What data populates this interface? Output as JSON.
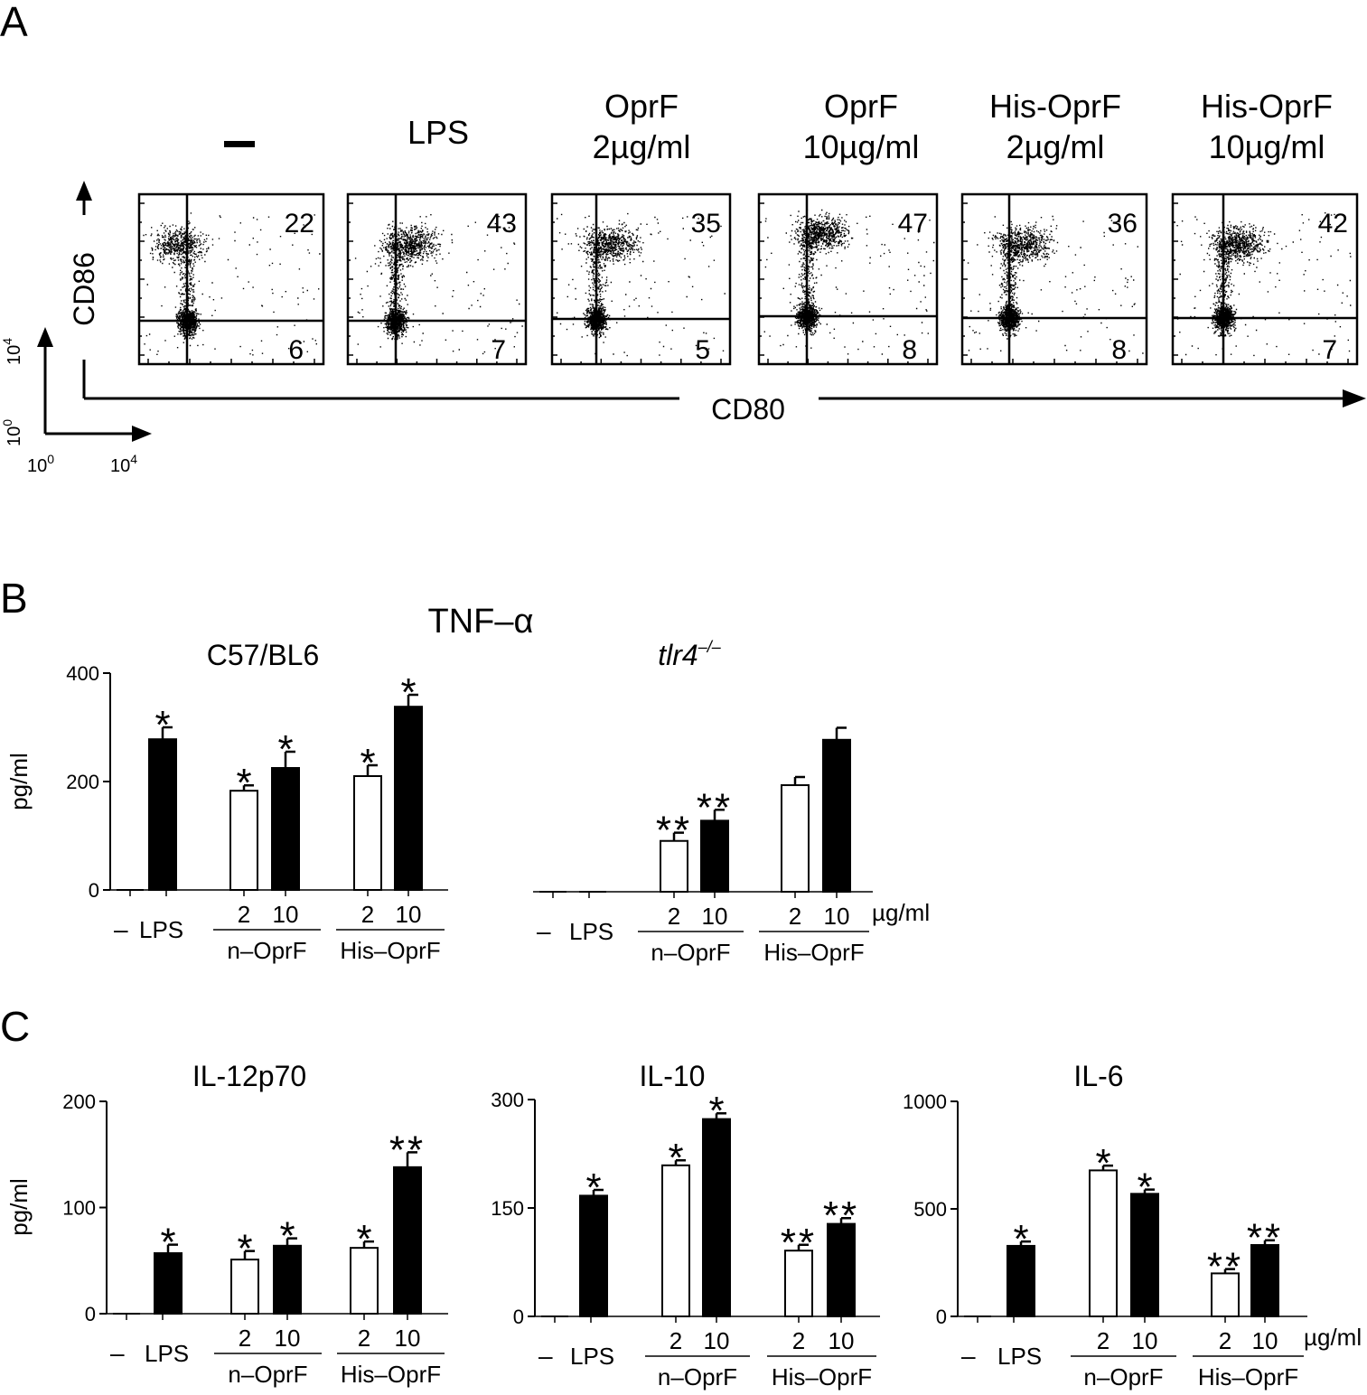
{
  "panels": {
    "a": "A",
    "b": "B",
    "c": "C"
  },
  "flow": {
    "conditions": [
      {
        "line1": "–",
        "line2": ""
      },
      {
        "line1": "LPS",
        "line2": ""
      },
      {
        "line1": "OprF",
        "line2": "2µg/ml"
      },
      {
        "line1": "OprF",
        "line2": "10µg/ml"
      },
      {
        "line1": "His-OprF",
        "line2": "2µg/ml"
      },
      {
        "line1": "His-OprF",
        "line2": "10µg/ml"
      }
    ],
    "upper_right_pct": [
      "22",
      "43",
      "35",
      "47",
      "36",
      "42"
    ],
    "lower_right_pct": [
      "6",
      "7",
      "5",
      "8",
      "8",
      "7"
    ],
    "y_axis_label": "CD86",
    "x_axis_label": "CD80",
    "scale_ticks": {
      "y_low": "10",
      "y_low_exp": "0",
      "y_high": "10",
      "y_high_exp": "4",
      "x_low": "10",
      "x_low_exp": "0",
      "x_high": "10",
      "x_high_exp": "4"
    }
  },
  "x_groups": {
    "minus": "–",
    "lps": "LPS",
    "dose_low": "2",
    "dose_high": "10",
    "n_oprf": "n–OprF",
    "his_oprf": "His–OprF",
    "unit": "µg/ml"
  },
  "tnf_title": "TNF–α",
  "chart_data": [
    {
      "type": "bar",
      "panel": "B",
      "title": "C57/BL6",
      "ylabel": "pg/ml",
      "ylim": [
        0,
        400
      ],
      "yticks": [
        0,
        200,
        400
      ],
      "categories": [
        "–",
        "LPS",
        "n–OprF 2",
        "n–OprF 10",
        "His–OprF 2",
        "His–OprF 10"
      ],
      "values": [
        0,
        278,
        183,
        225,
        210,
        338
      ],
      "errors": [
        0,
        22,
        10,
        30,
        20,
        22
      ],
      "fill": [
        "black",
        "black",
        "white",
        "black",
        "white",
        "black"
      ],
      "significance": [
        "",
        "*",
        "*",
        "*",
        "*",
        "*"
      ]
    },
    {
      "type": "bar",
      "panel": "B",
      "title": "tlr4",
      "title_superscript": "–/–",
      "ylabel": "",
      "ylim": [
        0,
        400
      ],
      "yticks": [],
      "categories": [
        "–",
        "LPS",
        "n–OprF 2",
        "n–OprF 10",
        "His–OprF 2",
        "His–OprF 10"
      ],
      "values": [
        0,
        0,
        93,
        130,
        195,
        278
      ],
      "errors": [
        0,
        0,
        15,
        20,
        15,
        22
      ],
      "fill": [
        "black",
        "black",
        "white",
        "black",
        "white",
        "black"
      ],
      "significance": [
        "",
        "",
        "**",
        "**",
        "",
        ""
      ]
    },
    {
      "type": "bar",
      "panel": "C",
      "title": "IL-12p70",
      "ylabel": "pg/ml",
      "ylim": [
        0,
        200
      ],
      "yticks": [
        0,
        100,
        200
      ],
      "categories": [
        "–",
        "LPS",
        "n–OprF 2",
        "n–OprF 10",
        "His–OprF 2",
        "His–OprF 10"
      ],
      "values": [
        0,
        57,
        51,
        64,
        62,
        138
      ],
      "errors": [
        0,
        8,
        8,
        7,
        6,
        14
      ],
      "fill": [
        "black",
        "black",
        "white",
        "black",
        "white",
        "black"
      ],
      "significance": [
        "",
        "*",
        "*",
        "*",
        "*",
        "**"
      ]
    },
    {
      "type": "bar",
      "panel": "C",
      "title": "IL-10",
      "ylabel": "",
      "ylim": [
        0,
        300
      ],
      "yticks": [
        0,
        150,
        300
      ],
      "categories": [
        "–",
        "LPS",
        "n–OprF 2",
        "n–OprF 10",
        "His–OprF 2",
        "His–OprF 10"
      ],
      "values": [
        0,
        167,
        209,
        273,
        91,
        128
      ],
      "errors": [
        0,
        8,
        7,
        8,
        8,
        8
      ],
      "fill": [
        "black",
        "black",
        "white",
        "black",
        "white",
        "black"
      ],
      "significance": [
        "",
        "*",
        "*",
        "*",
        "**",
        "**"
      ]
    },
    {
      "type": "bar",
      "panel": "C",
      "title": "IL-6",
      "ylabel": "",
      "ylim": [
        0,
        1000
      ],
      "yticks": [
        0,
        500,
        1000
      ],
      "categories": [
        "–",
        "LPS",
        "n–OprF 2",
        "n–OprF 10",
        "His–OprF 2",
        "His–OprF 10"
      ],
      "values": [
        0,
        328,
        679,
        570,
        200,
        332
      ],
      "errors": [
        0,
        20,
        22,
        20,
        20,
        22
      ],
      "fill": [
        "black",
        "black",
        "white",
        "black",
        "white",
        "black"
      ],
      "significance": [
        "",
        "*",
        "*",
        "*",
        "**",
        "**"
      ]
    }
  ]
}
